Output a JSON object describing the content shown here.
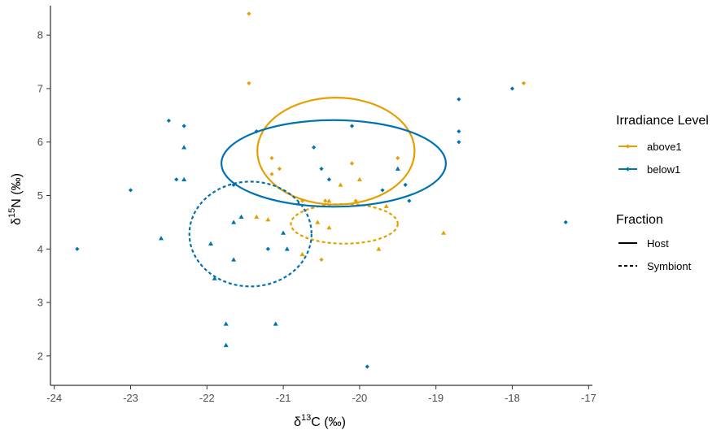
{
  "chart_data": {
    "type": "scatter",
    "xlabel": {
      "prefix": "δ",
      "sup": "13",
      "suffix": "C (‰)"
    },
    "ylabel": {
      "prefix": "δ",
      "sup": "15",
      "suffix": "N (‰)"
    },
    "xlim": [
      -24.05,
      -16.95
    ],
    "ylim": [
      1.45,
      8.55
    ],
    "xticks": [
      -24,
      -23,
      -22,
      -21,
      -20,
      -19,
      -18,
      -17
    ],
    "yticks": [
      2,
      3,
      4,
      5,
      6,
      7,
      8
    ],
    "grid": false,
    "legend_position": "right",
    "colors": {
      "above1": "#E69F00",
      "below1": "#0072B2"
    },
    "legend": {
      "color_title": "Irradiance Level",
      "color_entries": [
        "above1",
        "below1"
      ],
      "linetype_title": "Fraction",
      "linetype_entries": [
        {
          "label": "Host",
          "dash": "solid"
        },
        {
          "label": "Symbiont",
          "dash": "dashed"
        }
      ]
    },
    "points": [
      {
        "group": "above1",
        "fraction": "Host",
        "x": -21.45,
        "y": 8.4
      },
      {
        "group": "above1",
        "fraction": "Host",
        "x": -21.45,
        "y": 7.1
      },
      {
        "group": "above1",
        "fraction": "Host",
        "x": -17.85,
        "y": 7.1
      },
      {
        "group": "above1",
        "fraction": "Host",
        "x": -21.15,
        "y": 5.7
      },
      {
        "group": "above1",
        "fraction": "Host",
        "x": -21.05,
        "y": 5.5
      },
      {
        "group": "above1",
        "fraction": "Host",
        "x": -21.15,
        "y": 5.4
      },
      {
        "group": "above1",
        "fraction": "Host",
        "x": -20.1,
        "y": 5.6
      },
      {
        "group": "above1",
        "fraction": "Host",
        "x": -19.5,
        "y": 5.7
      },
      {
        "group": "above1",
        "fraction": "Host",
        "x": -20.45,
        "y": 4.9
      },
      {
        "group": "above1",
        "fraction": "Host",
        "x": -20.05,
        "y": 4.9
      },
      {
        "group": "above1",
        "fraction": "Host",
        "x": -20.5,
        "y": 3.8
      },
      {
        "group": "above1",
        "fraction": "Host",
        "x": -20.75,
        "y": 4.9
      },
      {
        "group": "above1",
        "fraction": "Symbiont",
        "x": -21.35,
        "y": 4.6
      },
      {
        "group": "above1",
        "fraction": "Symbiont",
        "x": -21.2,
        "y": 4.55
      },
      {
        "group": "above1",
        "fraction": "Symbiont",
        "x": -20.55,
        "y": 4.5
      },
      {
        "group": "above1",
        "fraction": "Symbiont",
        "x": -20.4,
        "y": 4.4
      },
      {
        "group": "above1",
        "fraction": "Symbiont",
        "x": -20.0,
        "y": 5.3
      },
      {
        "group": "above1",
        "fraction": "Symbiont",
        "x": -19.65,
        "y": 4.8
      },
      {
        "group": "above1",
        "fraction": "Symbiont",
        "x": -19.75,
        "y": 4.0
      },
      {
        "group": "above1",
        "fraction": "Symbiont",
        "x": -20.75,
        "y": 3.9
      },
      {
        "group": "above1",
        "fraction": "Symbiont",
        "x": -18.9,
        "y": 4.3
      },
      {
        "group": "above1",
        "fraction": "Symbiont",
        "x": -20.4,
        "y": 4.9
      },
      {
        "group": "above1",
        "fraction": "Symbiont",
        "x": -20.25,
        "y": 5.2
      },
      {
        "group": "below1",
        "fraction": "Host",
        "x": -23.7,
        "y": 4.0
      },
      {
        "group": "below1",
        "fraction": "Host",
        "x": -23.0,
        "y": 5.1
      },
      {
        "group": "below1",
        "fraction": "Host",
        "x": -22.5,
        "y": 6.4
      },
      {
        "group": "below1",
        "fraction": "Host",
        "x": -22.3,
        "y": 6.3
      },
      {
        "group": "below1",
        "fraction": "Host",
        "x": -22.4,
        "y": 5.3
      },
      {
        "group": "below1",
        "fraction": "Host",
        "x": -21.35,
        "y": 6.2
      },
      {
        "group": "below1",
        "fraction": "Host",
        "x": -21.65,
        "y": 5.2
      },
      {
        "group": "below1",
        "fraction": "Host",
        "x": -20.6,
        "y": 5.9
      },
      {
        "group": "below1",
        "fraction": "Host",
        "x": -20.5,
        "y": 5.5
      },
      {
        "group": "below1",
        "fraction": "Host",
        "x": -20.4,
        "y": 5.3
      },
      {
        "group": "below1",
        "fraction": "Host",
        "x": -20.1,
        "y": 6.3
      },
      {
        "group": "below1",
        "fraction": "Host",
        "x": -18.7,
        "y": 6.8
      },
      {
        "group": "below1",
        "fraction": "Host",
        "x": -18.7,
        "y": 6.2
      },
      {
        "group": "below1",
        "fraction": "Host",
        "x": -18.7,
        "y": 6.0
      },
      {
        "group": "below1",
        "fraction": "Host",
        "x": -18.0,
        "y": 7.0
      },
      {
        "group": "below1",
        "fraction": "Host",
        "x": -17.3,
        "y": 4.5
      },
      {
        "group": "below1",
        "fraction": "Host",
        "x": -19.9,
        "y": 1.8
      },
      {
        "group": "below1",
        "fraction": "Host",
        "x": -21.2,
        "y": 4.0
      },
      {
        "group": "below1",
        "fraction": "Host",
        "x": -19.35,
        "y": 4.9
      },
      {
        "group": "below1",
        "fraction": "Host",
        "x": -19.7,
        "y": 5.1
      },
      {
        "group": "below1",
        "fraction": "Host",
        "x": -19.4,
        "y": 5.2
      },
      {
        "group": "below1",
        "fraction": "Symbiont",
        "x": -22.6,
        "y": 4.2
      },
      {
        "group": "below1",
        "fraction": "Symbiont",
        "x": -22.3,
        "y": 5.9
      },
      {
        "group": "below1",
        "fraction": "Symbiont",
        "x": -22.3,
        "y": 5.3
      },
      {
        "group": "below1",
        "fraction": "Symbiont",
        "x": -21.95,
        "y": 4.1
      },
      {
        "group": "below1",
        "fraction": "Symbiont",
        "x": -21.65,
        "y": 4.5
      },
      {
        "group": "below1",
        "fraction": "Symbiont",
        "x": -21.55,
        "y": 4.6
      },
      {
        "group": "below1",
        "fraction": "Symbiont",
        "x": -21.65,
        "y": 3.8
      },
      {
        "group": "below1",
        "fraction": "Symbiont",
        "x": -21.9,
        "y": 3.45
      },
      {
        "group": "below1",
        "fraction": "Symbiont",
        "x": -21.75,
        "y": 2.6
      },
      {
        "group": "below1",
        "fraction": "Symbiont",
        "x": -21.75,
        "y": 2.2
      },
      {
        "group": "below1",
        "fraction": "Symbiont",
        "x": -21.1,
        "y": 2.6
      },
      {
        "group": "below1",
        "fraction": "Symbiont",
        "x": -20.95,
        "y": 4.0
      },
      {
        "group": "below1",
        "fraction": "Symbiont",
        "x": -21.0,
        "y": 4.3
      },
      {
        "group": "below1",
        "fraction": "Symbiont",
        "x": -20.8,
        "y": 4.85
      },
      {
        "group": "below1",
        "fraction": "Symbiont",
        "x": -19.5,
        "y": 5.5
      }
    ],
    "ellipses": [
      {
        "group": "above1",
        "fraction": "Host",
        "cx": -20.31,
        "cy": 5.83,
        "rx": 1.03,
        "ry": 1.0,
        "angle": 0
      },
      {
        "group": "above1",
        "fraction": "Symbiont",
        "cx": -20.2,
        "cy": 4.47,
        "rx": 0.7,
        "ry": 0.37,
        "angle": 0
      },
      {
        "group": "below1",
        "fraction": "Host",
        "cx": -20.34,
        "cy": 5.6,
        "rx": 1.47,
        "ry": 0.81,
        "angle": 0
      },
      {
        "group": "below1",
        "fraction": "Symbiont",
        "cx": -21.43,
        "cy": 4.28,
        "rx": 0.8,
        "ry": 0.98,
        "angle": 0
      }
    ]
  }
}
